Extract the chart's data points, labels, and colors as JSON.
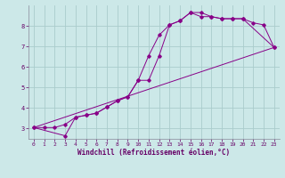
{
  "xlabel": "Windchill (Refroidissement éolien,°C)",
  "bg_color": "#cce8e8",
  "grid_color": "#aacccc",
  "line_color": "#880088",
  "xlim": [
    -0.5,
    23.5
  ],
  "ylim": [
    2.5,
    9.0
  ],
  "yticks": [
    3,
    4,
    5,
    6,
    7,
    8
  ],
  "xticks": [
    0,
    1,
    2,
    3,
    4,
    5,
    6,
    7,
    8,
    9,
    10,
    11,
    12,
    13,
    14,
    15,
    16,
    17,
    18,
    19,
    20,
    21,
    22,
    23
  ],
  "series1_x": [
    0,
    1,
    2,
    3,
    4,
    5,
    6,
    7,
    8,
    9,
    10,
    11,
    12,
    13,
    14,
    15,
    16,
    17,
    18,
    19,
    20,
    21,
    22,
    23
  ],
  "series1_y": [
    3.05,
    3.05,
    3.05,
    3.2,
    3.55,
    3.65,
    3.75,
    4.05,
    4.35,
    4.55,
    5.35,
    6.55,
    7.55,
    8.05,
    8.25,
    8.65,
    8.65,
    8.45,
    8.35,
    8.35,
    8.35,
    8.15,
    8.05,
    6.95
  ],
  "series2_x": [
    0,
    3,
    4,
    5,
    6,
    7,
    8,
    9,
    10,
    11,
    12,
    13,
    14,
    15,
    16,
    17,
    18,
    19,
    20,
    23
  ],
  "series2_y": [
    3.05,
    2.65,
    3.55,
    3.65,
    3.75,
    4.05,
    4.35,
    4.55,
    5.35,
    5.35,
    6.55,
    8.05,
    8.25,
    8.65,
    8.45,
    8.45,
    8.35,
    8.35,
    8.35,
    6.95
  ],
  "series3_x": [
    0,
    23
  ],
  "series3_y": [
    3.05,
    6.95
  ]
}
